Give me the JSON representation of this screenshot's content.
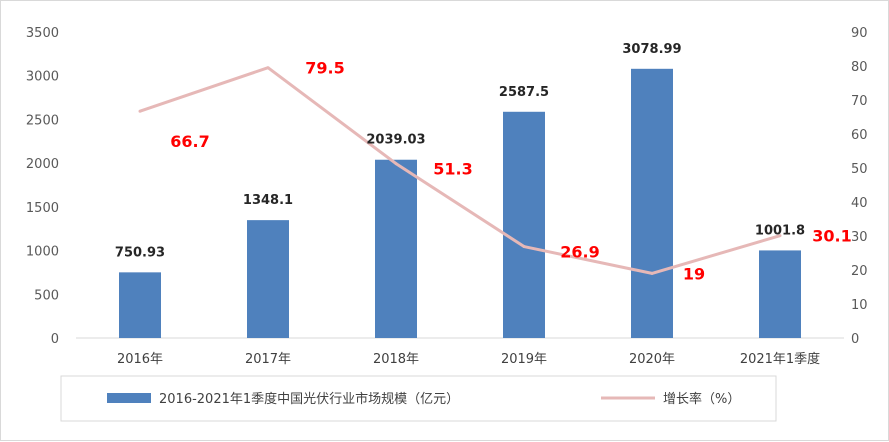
{
  "chart_data": {
    "type": "bar",
    "categories": [
      "2016年",
      "2017年",
      "2018年",
      "2019年",
      "2020年",
      "2021年1季度"
    ],
    "series": [
      {
        "name": "2016-2021年1季度中国光伏行业市场规模（亿元）",
        "type": "bar",
        "axis": "left",
        "values": [
          750.93,
          1348.1,
          2039.03,
          2587.5,
          3078.99,
          1001.8
        ],
        "labels": [
          "750.93",
          "1348.1",
          "2039.03",
          "2587.5",
          "3078.99",
          "1001.8"
        ],
        "color": "#4f81bd"
      },
      {
        "name": "增长率（%）",
        "type": "line",
        "axis": "right",
        "values": [
          66.7,
          79.5,
          51.3,
          26.9,
          19,
          30.1
        ],
        "labels": [
          "66.7",
          "79.5",
          "51.3",
          "26.9",
          "19",
          "30.1"
        ],
        "color": "#e6b8b7",
        "label_color": "#ff0000"
      }
    ],
    "y_left": {
      "min": 0,
      "max": 3500,
      "ticks": [
        "0",
        "500",
        "1000",
        "1500",
        "2000",
        "2500",
        "3000",
        "3500"
      ]
    },
    "y_right": {
      "min": 0,
      "max": 90,
      "ticks": [
        "0",
        "10",
        "20",
        "30",
        "40",
        "50",
        "60",
        "70",
        "80",
        "90"
      ]
    },
    "grid": false,
    "legend_position": "bottom",
    "title": "",
    "xlabel": "",
    "ylabel": ""
  }
}
